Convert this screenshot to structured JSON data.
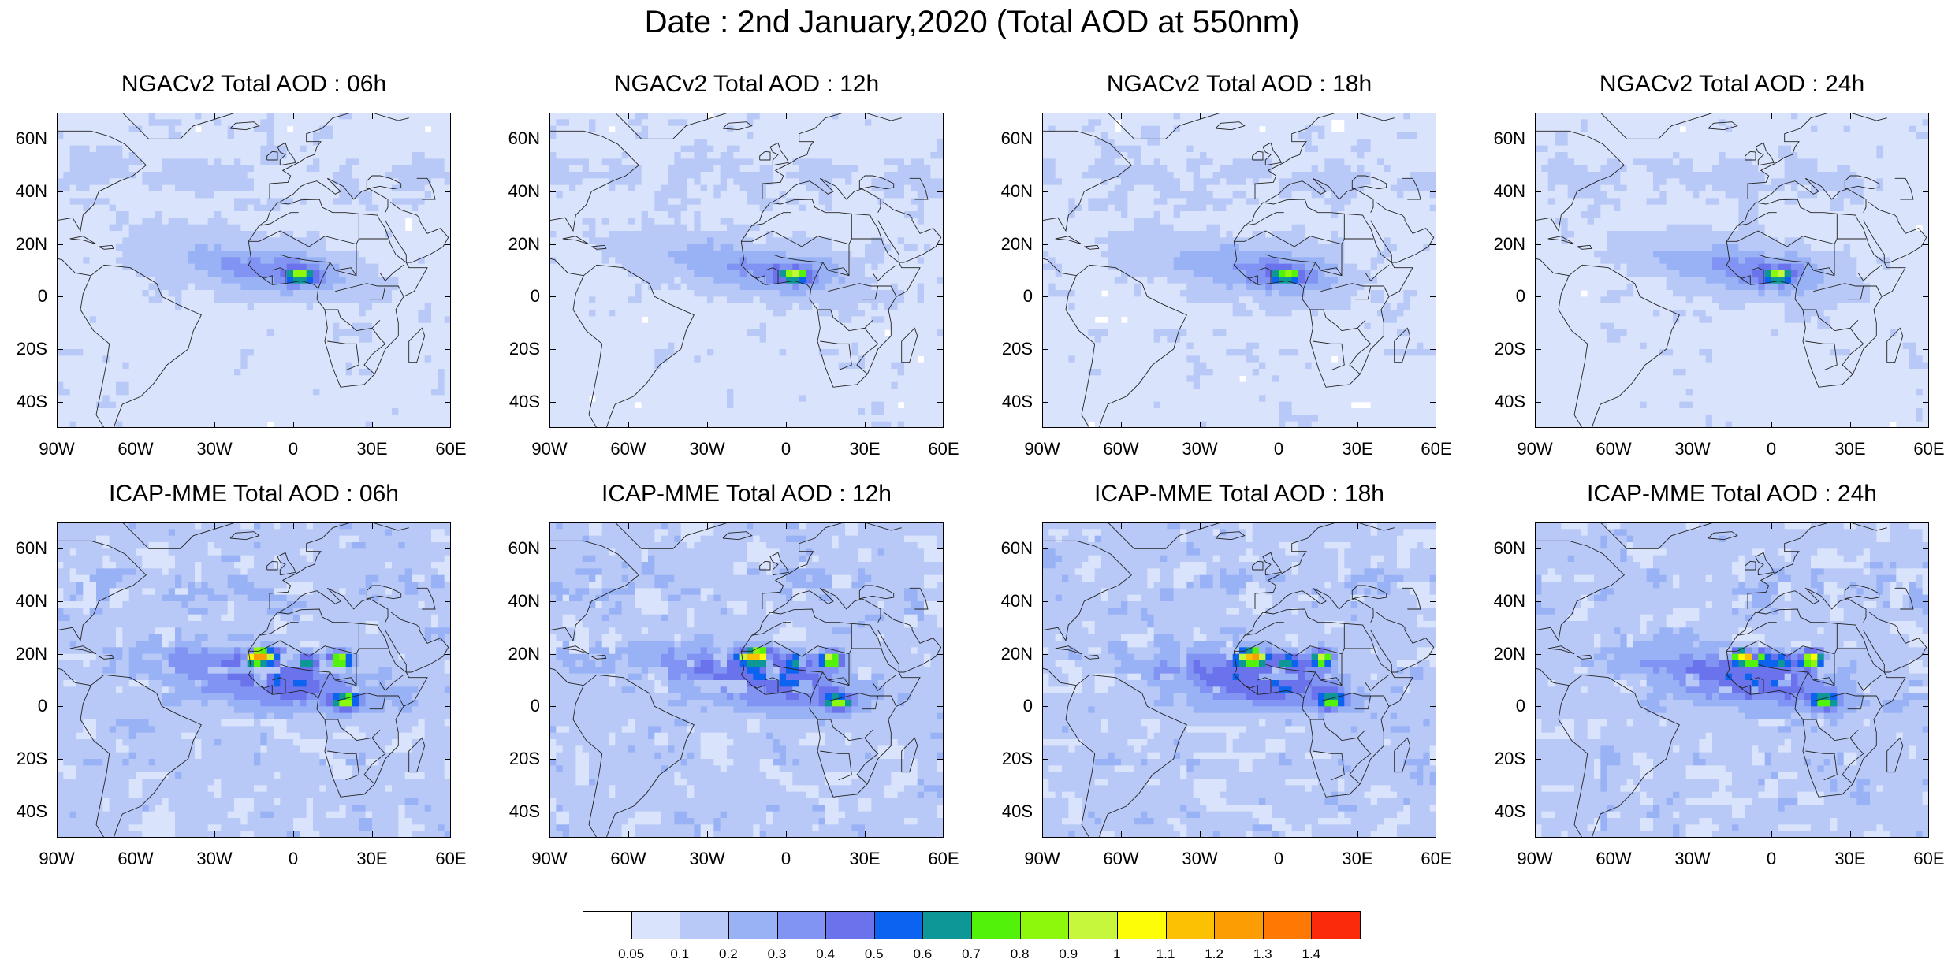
{
  "title": "Date : 2nd January,2020 (Total AOD at 550nm)",
  "panels": [
    {
      "title": "NGACv2 Total AOD : 06h",
      "model": "NGACv2",
      "hour": "06h"
    },
    {
      "title": "NGACv2 Total AOD : 12h",
      "model": "NGACv2",
      "hour": "12h"
    },
    {
      "title": "NGACv2 Total AOD : 18h",
      "model": "NGACv2",
      "hour": "18h"
    },
    {
      "title": "NGACv2 Total AOD : 24h",
      "model": "NGACv2",
      "hour": "24h"
    },
    {
      "title": "ICAP-MME Total AOD : 06h",
      "model": "ICAP-MME",
      "hour": "06h"
    },
    {
      "title": "ICAP-MME Total AOD : 12h",
      "model": "ICAP-MME",
      "hour": "12h"
    },
    {
      "title": "ICAP-MME Total AOD : 18h",
      "model": "ICAP-MME",
      "hour": "18h"
    },
    {
      "title": "ICAP-MME Total AOD : 24h",
      "model": "ICAP-MME",
      "hour": "24h"
    }
  ],
  "lat_labels": [
    "60N",
    "40N",
    "20N",
    "0",
    "20S",
    "40S"
  ],
  "lon_labels": [
    "90W",
    "60W",
    "30W",
    "0",
    "30E",
    "60E"
  ],
  "map_extent": {
    "lon": [
      -90,
      60
    ],
    "lat": [
      -50,
      70
    ]
  },
  "colorbar": {
    "colors": [
      "#ffffff",
      "#d9e3fb",
      "#b9c9f7",
      "#99b2f6",
      "#8294f3",
      "#6a72ec",
      "#0b63ef",
      "#0d9797",
      "#53f20a",
      "#8ef80c",
      "#c6f73d",
      "#fcfd06",
      "#fdc104",
      "#fd9d04",
      "#fd7904",
      "#fb2a0a"
    ],
    "labels": [
      "0.05",
      "0.1",
      "0.2",
      "0.3",
      "0.4",
      "0.5",
      "0.6",
      "0.7",
      "0.8",
      "0.9",
      "1",
      "1.1",
      "1.2",
      "1.3",
      "1.4"
    ]
  }
}
